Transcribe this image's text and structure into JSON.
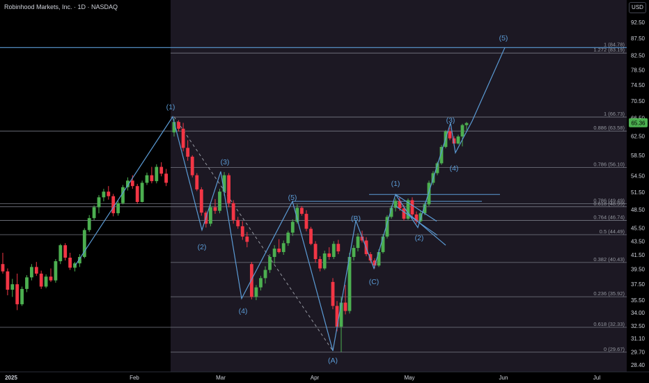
{
  "header": {
    "title": "Robinhood Markets, Inc. · 1D · NASDAQ",
    "currency_button": "USD"
  },
  "colors": {
    "up": "#26a69a",
    "up_fill": "#4caf50",
    "down": "#f23645",
    "wave": "#5b9bd5",
    "fib": "#9598a1",
    "bg": "#000000",
    "shade": "#1c1823",
    "last_price": "#4caf50"
  },
  "chart_data": {
    "type": "candlestick",
    "title": "Robinhood Markets, Inc. · 1D · NASDAQ",
    "ylim": [
      27.5,
      96
    ],
    "y_scale": "log",
    "y_ticks": [
      "92.50",
      "87.50",
      "82.50",
      "78.50",
      "74.50",
      "70.50",
      "66.50",
      "62.50",
      "58.50",
      "54.50",
      "51.50",
      "48.50",
      "45.50",
      "43.50",
      "41.50",
      "39.50",
      "37.50",
      "35.50",
      "34.00",
      "32.50",
      "31.10",
      "29.70",
      "28.40"
    ],
    "x_ticks": [
      "2025",
      "Feb",
      "Mar",
      "Apr",
      "May",
      "Jun",
      "Jul"
    ],
    "last_price": "65.36",
    "fib_levels": [
      {
        "label": "1 (84.78)",
        "value": 84.78
      },
      {
        "label": "1.272 (83.19)",
        "value": 83.19
      },
      {
        "label": "1 (66.73)",
        "value": 66.73
      },
      {
        "label": "0.886 (63.58)",
        "value": 63.58
      },
      {
        "label": "0.786 (56.10)",
        "value": 56.1
      },
      {
        "label": "0.786 (49.49)",
        "value": 49.49
      },
      {
        "label": "0.618 (48.99)",
        "value": 48.99
      },
      {
        "label": "0.764 (46.74)",
        "value": 46.74
      },
      {
        "label": "0.5 (44.49)",
        "value": 44.49
      },
      {
        "label": "0.382 (40.43)",
        "value": 40.43
      },
      {
        "label": "0.236 (35.92)",
        "value": 35.92
      },
      {
        "label": "0.618 (32.33)",
        "value": 32.33
      },
      {
        "label": "0 (29.67)",
        "value": 29.67
      }
    ],
    "wave_labels": [
      "(1)",
      "(2)",
      "(3)",
      "(4)",
      "(5)",
      "(A)",
      "(B)",
      "(C)",
      "(1)",
      "(2)",
      "(3)",
      "(4)",
      "(5)"
    ],
    "candles": [
      [
        40.2,
        41.8,
        38.9,
        39.2
      ],
      [
        39.2,
        39.6,
        36.1,
        36.8
      ],
      [
        36.8,
        38.2,
        35.9,
        37.5
      ],
      [
        37.5,
        38.9,
        34.3,
        35.0
      ],
      [
        35.0,
        37.2,
        34.8,
        36.9
      ],
      [
        36.9,
        38.7,
        36.5,
        38.4
      ],
      [
        38.4,
        40.2,
        38.0,
        39.8
      ],
      [
        39.8,
        40.5,
        38.6,
        38.9
      ],
      [
        38.9,
        39.3,
        36.9,
        37.2
      ],
      [
        37.2,
        38.8,
        37.0,
        38.5
      ],
      [
        38.5,
        39.6,
        37.8,
        38.0
      ],
      [
        38.0,
        40.9,
        37.7,
        40.6
      ],
      [
        40.6,
        43.1,
        40.2,
        42.9
      ],
      [
        42.9,
        43.2,
        40.7,
        41.1
      ],
      [
        41.1,
        41.8,
        39.4,
        39.7
      ],
      [
        39.7,
        40.5,
        39.2,
        40.3
      ],
      [
        40.3,
        41.6,
        39.8,
        41.2
      ],
      [
        41.2,
        45.5,
        41.0,
        45.2
      ],
      [
        45.2,
        47.6,
        44.9,
        47.1
      ],
      [
        47.1,
        49.2,
        46.8,
        48.9
      ],
      [
        48.9,
        51.0,
        47.9,
        50.6
      ],
      [
        50.6,
        52.1,
        49.9,
        51.6
      ],
      [
        51.6,
        52.6,
        50.2,
        50.8
      ],
      [
        50.8,
        51.2,
        47.4,
        47.9
      ],
      [
        47.9,
        50.1,
        47.5,
        49.6
      ],
      [
        49.6,
        52.8,
        49.4,
        52.4
      ],
      [
        52.4,
        54.2,
        51.8,
        53.6
      ],
      [
        53.6,
        54.6,
        52.1,
        52.6
      ],
      [
        52.6,
        53.0,
        49.5,
        49.8
      ],
      [
        49.8,
        53.6,
        49.7,
        53.2
      ],
      [
        53.2,
        55.1,
        52.8,
        54.6
      ],
      [
        54.6,
        56.2,
        53.1,
        53.5
      ],
      [
        53.5,
        56.7,
        53.1,
        56.2
      ],
      [
        56.2,
        57.1,
        54.4,
        54.9
      ],
      [
        54.9,
        55.8,
        52.6,
        53.2
      ],
      [
        63.3,
        66.3,
        62.4,
        65.6
      ],
      [
        65.6,
        66.0,
        63.5,
        64.1
      ],
      [
        64.1,
        65.4,
        59.3,
        60.0
      ],
      [
        60.0,
        61.6,
        57.4,
        58.2
      ],
      [
        58.2,
        58.5,
        54.2,
        54.6
      ],
      [
        54.6,
        55.0,
        51.7,
        52.0
      ],
      [
        52.0,
        52.4,
        47.5,
        48.0
      ],
      [
        48.0,
        48.3,
        45.6,
        46.2
      ],
      [
        46.2,
        49.3,
        45.8,
        48.9
      ],
      [
        48.9,
        50.3,
        47.8,
        48.3
      ],
      [
        48.3,
        52.1,
        47.9,
        51.6
      ],
      [
        51.6,
        55.2,
        50.9,
        54.6
      ],
      [
        54.6,
        55.0,
        48.9,
        49.6
      ],
      [
        49.6,
        50.1,
        46.2,
        46.8
      ],
      [
        46.8,
        47.3,
        45.4,
        45.8
      ],
      [
        45.8,
        46.6,
        43.7,
        44.2
      ],
      [
        44.2,
        44.9,
        42.6,
        43.4
      ],
      [
        40.2,
        40.5,
        35.6,
        35.9
      ],
      [
        35.9,
        37.4,
        35.5,
        37.1
      ],
      [
        37.1,
        38.6,
        36.7,
        38.3
      ],
      [
        38.3,
        39.9,
        37.6,
        39.4
      ],
      [
        39.4,
        41.6,
        39.0,
        41.2
      ],
      [
        41.2,
        42.9,
        40.3,
        42.4
      ],
      [
        42.4,
        43.8,
        41.7,
        41.9
      ],
      [
        41.9,
        43.6,
        41.5,
        43.2
      ],
      [
        43.2,
        45.1,
        42.8,
        44.8
      ],
      [
        44.8,
        46.9,
        44.3,
        46.5
      ],
      [
        46.5,
        49.4,
        46.2,
        48.8
      ],
      [
        48.8,
        49.1,
        47.5,
        47.8
      ],
      [
        47.8,
        48.4,
        45.0,
        45.4
      ],
      [
        45.4,
        45.7,
        42.9,
        43.1
      ],
      [
        43.1,
        43.5,
        40.4,
        40.9
      ],
      [
        40.9,
        41.3,
        39.2,
        39.6
      ],
      [
        39.6,
        42.1,
        39.4,
        41.7
      ],
      [
        41.7,
        42.6,
        40.8,
        41.2
      ],
      [
        41.2,
        43.5,
        40.9,
        43.1
      ],
      [
        43.1,
        43.7,
        41.6,
        42.0
      ],
      [
        37.8,
        38.3,
        34.4,
        34.8
      ],
      [
        34.8,
        35.4,
        31.9,
        32.4
      ],
      [
        32.4,
        35.9,
        29.7,
        35.2
      ],
      [
        35.2,
        37.4,
        33.8,
        34.2
      ],
      [
        34.2,
        41.8,
        33.9,
        41.2
      ],
      [
        41.2,
        42.9,
        40.7,
        42.5
      ],
      [
        42.5,
        44.7,
        42.0,
        44.2
      ],
      [
        44.2,
        45.1,
        43.3,
        43.6
      ],
      [
        43.6,
        44.1,
        41.3,
        41.6
      ],
      [
        41.6,
        41.9,
        40.3,
        40.7
      ],
      [
        40.7,
        41.0,
        39.6,
        40.0
      ],
      [
        40.0,
        42.3,
        39.8,
        41.9
      ],
      [
        41.9,
        44.6,
        41.7,
        44.2
      ],
      [
        44.2,
        47.6,
        43.9,
        47.3
      ],
      [
        47.3,
        49.2,
        47.0,
        48.8
      ],
      [
        48.8,
        50.4,
        48.2,
        50.0
      ],
      [
        50.0,
        50.6,
        48.3,
        48.7
      ],
      [
        48.7,
        49.3,
        46.7,
        47.0
      ],
      [
        47.0,
        50.4,
        46.8,
        50.1
      ],
      [
        50.1,
        50.6,
        47.3,
        47.7
      ],
      [
        47.7,
        48.2,
        46.2,
        46.6
      ],
      [
        46.6,
        48.3,
        46.4,
        47.9
      ],
      [
        47.9,
        49.7,
        47.6,
        49.4
      ],
      [
        49.4,
        53.6,
        49.1,
        53.2
      ],
      [
        53.2,
        55.4,
        52.8,
        55.0
      ],
      [
        55.0,
        57.2,
        54.6,
        56.9
      ],
      [
        56.9,
        60.6,
        56.6,
        60.2
      ],
      [
        60.2,
        63.8,
        59.9,
        63.5
      ],
      [
        63.5,
        64.3,
        61.6,
        62.0
      ],
      [
        62.0,
        62.5,
        60.5,
        60.9
      ],
      [
        60.9,
        62.8,
        60.7,
        62.4
      ],
      [
        62.4,
        65.2,
        60.3,
        64.9
      ],
      [
        64.9,
        65.6,
        63.8,
        65.36
      ]
    ]
  }
}
